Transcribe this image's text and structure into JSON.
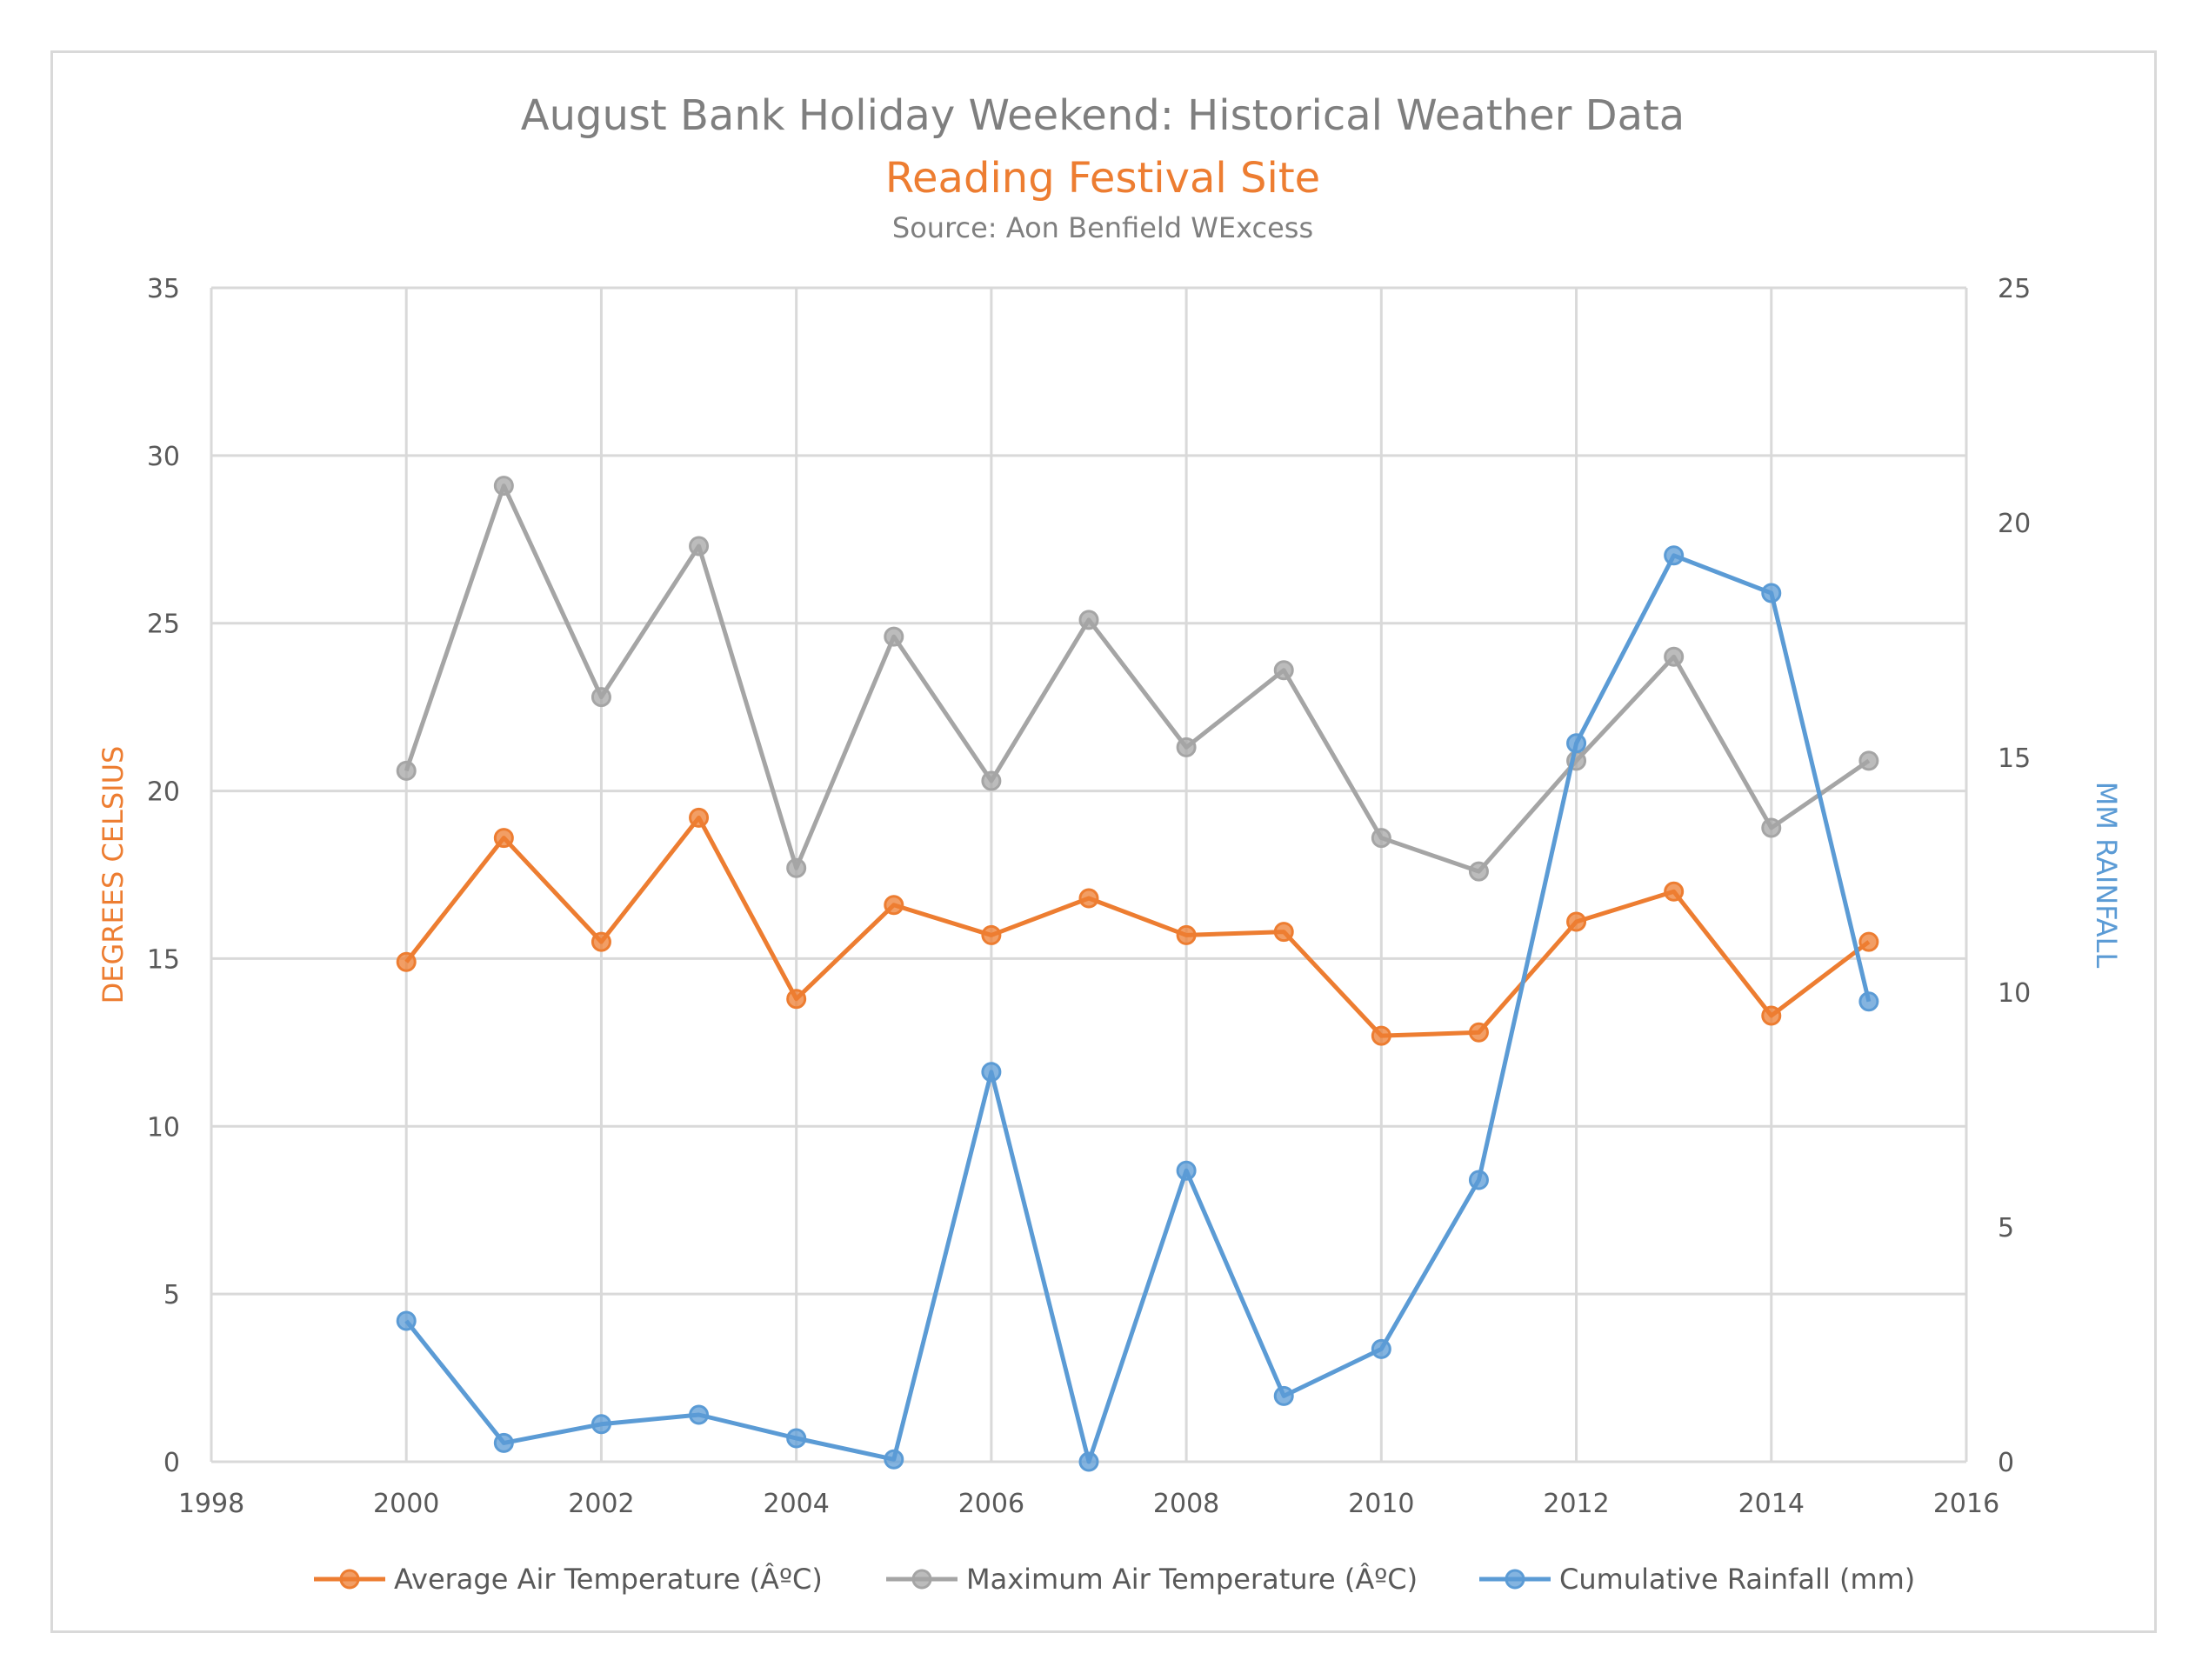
{
  "chart_data": {
    "type": "line",
    "title": "August Bank Holiday Weekend: Historical Weather Data",
    "subtitle": "Reading Festival Site",
    "source": "Source: Aon Benfield WExcess",
    "ylabel": "DEGREES CELSIUS",
    "y2label": "MM RAINFALL",
    "xlim": [
      1998,
      2016
    ],
    "ylim": [
      0,
      35
    ],
    "y2lim": [
      0,
      25
    ],
    "x_ticks": [
      1998,
      2000,
      2002,
      2004,
      2006,
      2008,
      2010,
      2012,
      2014,
      2016
    ],
    "y_ticks": [
      0,
      5,
      10,
      15,
      20,
      25,
      30,
      35
    ],
    "y2_ticks": [
      0,
      5,
      10,
      15,
      20,
      25
    ],
    "grid": true,
    "legend_position": "bottom",
    "x": [
      2000,
      2001,
      2002,
      2003,
      2004,
      2005,
      2006,
      2007,
      2008,
      2009,
      2010,
      2011,
      2012,
      2013,
      2014,
      2015
    ],
    "series": [
      {
        "name": "Average Air Temperature (ÂºC)",
        "axis": "left",
        "color": "#ed7d31",
        "values": [
          14.9,
          18.6,
          15.5,
          19.2,
          13.8,
          16.6,
          15.7,
          16.8,
          15.7,
          15.8,
          12.7,
          12.8,
          16.1,
          17.0,
          13.3,
          15.5
        ]
      },
      {
        "name": "Maximum Air Temperature (ÂºC)",
        "axis": "left",
        "color": "#a5a5a5",
        "values": [
          20.6,
          29.1,
          22.8,
          27.3,
          17.7,
          24.6,
          20.3,
          25.1,
          21.3,
          23.6,
          18.6,
          17.6,
          20.9,
          24.0,
          18.9,
          20.9
        ]
      },
      {
        "name": "Cumulative Rainfall (mm)",
        "axis": "right",
        "color": "#5b9bd5",
        "values": [
          3.0,
          0.4,
          0.8,
          1.0,
          0.5,
          0.05,
          8.3,
          0.0,
          6.2,
          1.4,
          2.4,
          6.0,
          15.3,
          19.3,
          18.5,
          9.8
        ]
      }
    ]
  }
}
